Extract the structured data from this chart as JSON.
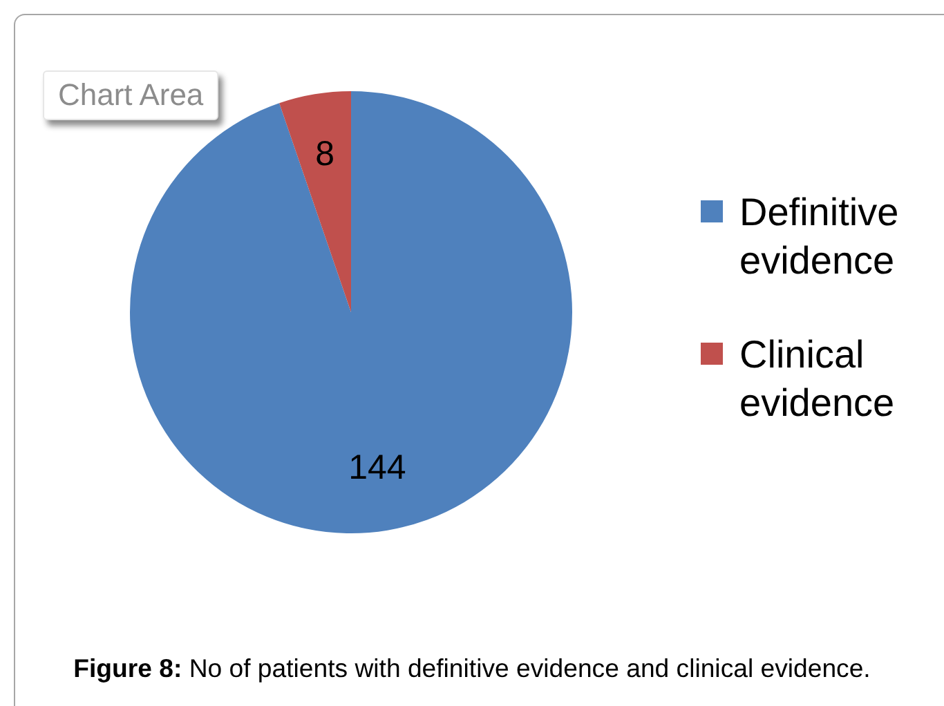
{
  "chart_data": {
    "type": "pie",
    "categories": [
      "Definitive evidence",
      "Clinical evidence"
    ],
    "values": [
      144,
      8
    ],
    "colors": [
      "#4f81bd",
      "#c0504d"
    ],
    "data_labels": true,
    "legend": "right",
    "annotations": [
      "Chart Area",
      "Figure 8: No of patients with definitive evidence and clinical evidence."
    ]
  }
}
